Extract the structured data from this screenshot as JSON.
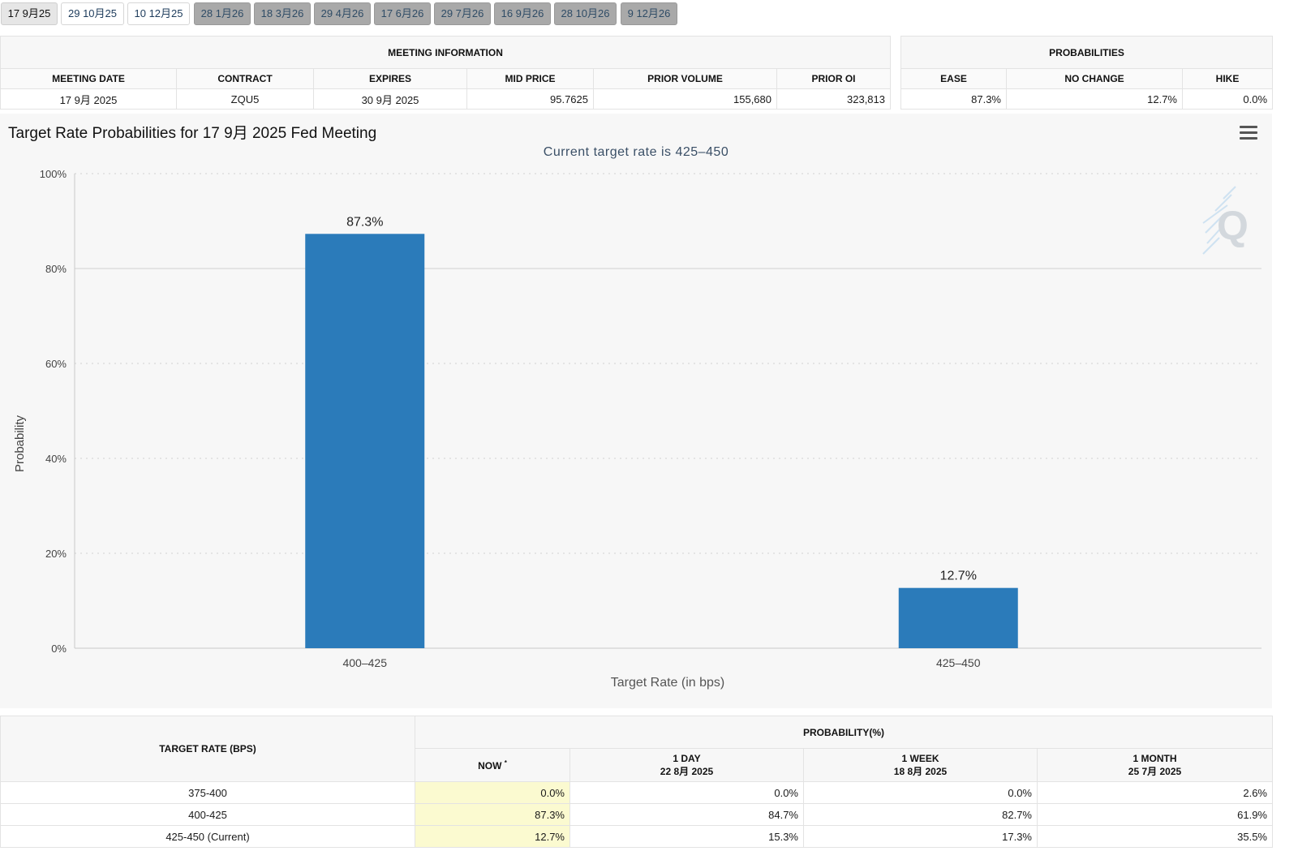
{
  "tabs": [
    {
      "label": "17 9月25",
      "state": "active"
    },
    {
      "label": "29 10月25",
      "state": "normal"
    },
    {
      "label": "10 12月25",
      "state": "normal"
    },
    {
      "label": "28 1月26",
      "state": "dim"
    },
    {
      "label": "18 3月26",
      "state": "dim"
    },
    {
      "label": "29 4月26",
      "state": "dim"
    },
    {
      "label": "17 6月26",
      "state": "dim"
    },
    {
      "label": "29 7月26",
      "state": "dim"
    },
    {
      "label": "16 9月26",
      "state": "dim"
    },
    {
      "label": "28 10月26",
      "state": "dim"
    },
    {
      "label": "9 12月26",
      "state": "dim"
    }
  ],
  "meeting_info": {
    "title": "MEETING INFORMATION",
    "headers": [
      "MEETING DATE",
      "CONTRACT",
      "EXPIRES",
      "MID PRICE",
      "PRIOR VOLUME",
      "PRIOR OI"
    ],
    "values": [
      "17 9月 2025",
      "ZQU5",
      "30 9月 2025",
      "95.7625",
      "155,680",
      "323,813"
    ]
  },
  "probabilities": {
    "title": "PROBABILITIES",
    "headers": [
      "EASE",
      "NO CHANGE",
      "HIKE"
    ],
    "values": [
      "87.3%",
      "12.7%",
      "0.0%"
    ]
  },
  "chart": {
    "title": "Target Rate Probabilities for 17 9月 2025 Fed Meeting",
    "subtitle": "Current target rate is 425–450",
    "menu_icon": "hamburger-menu-icon",
    "watermark_icon": "quikstrike-q-logo"
  },
  "chart_data": {
    "type": "bar",
    "categories": [
      "400–425",
      "425–450"
    ],
    "values": [
      87.3,
      12.7
    ],
    "data_labels": [
      "87.3%",
      "12.7%"
    ],
    "xlabel": "Target Rate (in bps)",
    "ylabel": "Probability",
    "ylim": [
      0,
      100
    ],
    "yticks": [
      0,
      20,
      40,
      60,
      80,
      100
    ],
    "ytick_labels": [
      "0%",
      "20%",
      "40%",
      "60%",
      "80%",
      "100%"
    ],
    "bar_color": "#2b7bba",
    "grid": true
  },
  "rate_table": {
    "col_target": "TARGET RATE (BPS)",
    "col_group": "PROBABILITY(%)",
    "now_label": "NOW",
    "now_mark": "*",
    "cols": [
      {
        "label": "1 DAY",
        "date": "22 8月 2025"
      },
      {
        "label": "1 WEEK",
        "date": "18 8月 2025"
      },
      {
        "label": "1 MONTH",
        "date": "25 7月 2025"
      }
    ],
    "rows": [
      {
        "rate": "375-400",
        "now": "0.0%",
        "day": "0.0%",
        "week": "0.0%",
        "month": "2.6%"
      },
      {
        "rate": "400-425",
        "now": "87.3%",
        "day": "84.7%",
        "week": "82.7%",
        "month": "61.9%"
      },
      {
        "rate": "425-450 (Current)",
        "now": "12.7%",
        "day": "15.3%",
        "week": "17.3%",
        "month": "35.5%"
      }
    ]
  },
  "colors": {
    "accent": "#2b7bba",
    "now_highlight": "#fbfad0",
    "tab_dim": "#a9a9a9"
  }
}
